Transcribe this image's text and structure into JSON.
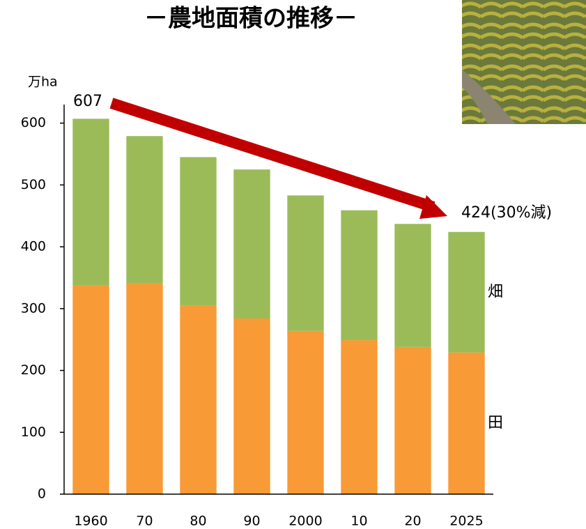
{
  "chart_data": {
    "type": "stacked_bar",
    "title": "－農地面積の推移－",
    "y_label": "万ha",
    "categories": [
      "1960",
      "70",
      "80",
      "90",
      "2000",
      "10",
      "20",
      "2025"
    ],
    "series": [
      {
        "name": "田",
        "color": "#f89a36",
        "values": [
          338,
          341,
          305,
          284,
          264,
          249,
          238,
          229
        ]
      },
      {
        "name": "畑",
        "color": "#9bbb59",
        "values": [
          269,
          238,
          240,
          241,
          219,
          210,
          199,
          195
        ]
      }
    ],
    "ylim": [
      0,
      630
    ],
    "yticks": [
      0,
      100,
      200,
      300,
      400,
      500,
      600
    ],
    "grid": false,
    "annotations": [
      {
        "text": "607"
      },
      {
        "text": "424(30%減)"
      }
    ]
  }
}
